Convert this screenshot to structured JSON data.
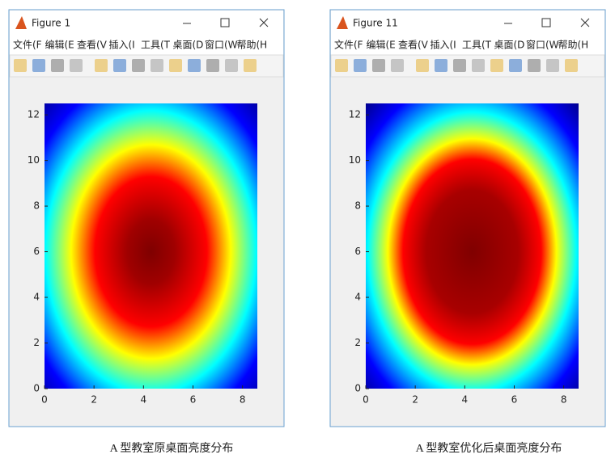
{
  "windows": [
    {
      "title": "Figure 1",
      "menu": [
        "文件(F",
        "编辑(E",
        "查看(V",
        "插入(I",
        "工具(T",
        "桌面(D",
        "窗口(W",
        "帮助(H"
      ],
      "plot": {
        "xlim": [
          0,
          8.6
        ],
        "ylim": [
          0,
          12.5
        ],
        "xticks": [
          0,
          2,
          4,
          6,
          8
        ],
        "yticks": [
          0,
          2,
          4,
          6,
          8,
          10,
          12
        ]
      }
    },
    {
      "title": "Figure 11",
      "menu": [
        "文件(F",
        "编辑(E",
        "查看(V",
        "插入(I",
        "工具(T",
        "桌面(D",
        "窗口(W",
        "帮助(H"
      ],
      "plot": {
        "xlim": [
          0,
          8.6
        ],
        "ylim": [
          0,
          12.5
        ],
        "xticks": [
          0,
          2,
          4,
          6,
          8
        ],
        "yticks": [
          0,
          2,
          4,
          6,
          8,
          10,
          12
        ]
      }
    }
  ],
  "captions": [
    "A 型教室原桌面亮度分布",
    "A 型教室优化后桌面亮度分布"
  ]
}
